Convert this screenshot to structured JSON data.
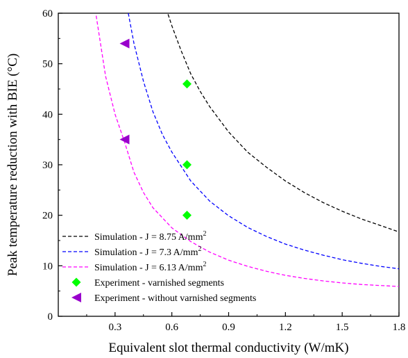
{
  "chart_data": {
    "type": "scatter",
    "xlabel": "Equivalent slot thermal conductivity (W/mK)",
    "ylabel": "Peak temperature reduction with BIE (°C)",
    "xlim": [
      0.0,
      1.8
    ],
    "ylim": [
      0,
      60
    ],
    "x_ticks": [
      "0.3",
      "0.6",
      "0.9",
      "1.2",
      "1.5",
      "1.8"
    ],
    "x_tick_values": [
      0.3,
      0.6,
      0.9,
      1.2,
      1.5,
      1.8
    ],
    "y_ticks": [
      "0",
      "10",
      "20",
      "30",
      "40",
      "50",
      "60"
    ],
    "y_tick_values": [
      0,
      10,
      20,
      30,
      40,
      50,
      60
    ],
    "grid": false,
    "legend_position": "bottom-left",
    "series": [
      {
        "name": "Simulation - J = 8.75 A/mm",
        "name_sup": "2",
        "kind": "dashed-line",
        "color": "#000000",
        "x": [
          0.58,
          0.6,
          0.65,
          0.7,
          0.75,
          0.8,
          0.9,
          1.0,
          1.1,
          1.2,
          1.3,
          1.4,
          1.5,
          1.6,
          1.7,
          1.8
        ],
        "y": [
          59.8,
          57.5,
          52.5,
          48.0,
          44.5,
          41.5,
          36.5,
          32.5,
          29.5,
          26.8,
          24.5,
          22.5,
          20.8,
          19.3,
          18.0,
          16.7
        ]
      },
      {
        "name": "Simulation - J = 7.3 A/mm",
        "name_sup": "2",
        "kind": "dashed-line",
        "color": "#0000ff",
        "x": [
          0.37,
          0.4,
          0.45,
          0.5,
          0.55,
          0.6,
          0.7,
          0.8,
          0.9,
          1.0,
          1.1,
          1.2,
          1.3,
          1.4,
          1.5,
          1.6,
          1.7,
          1.8
        ],
        "y": [
          60.0,
          54.0,
          46.5,
          40.5,
          36.0,
          32.5,
          26.8,
          22.8,
          19.9,
          17.6,
          15.8,
          14.3,
          13.1,
          12.1,
          11.2,
          10.5,
          9.9,
          9.4
        ]
      },
      {
        "name": "Simulation - J = 6.13 A/mm",
        "name_sup": "2",
        "kind": "dashed-line",
        "color": "#ff00ff",
        "x": [
          0.2,
          0.25,
          0.3,
          0.35,
          0.4,
          0.45,
          0.5,
          0.6,
          0.7,
          0.8,
          0.9,
          1.0,
          1.1,
          1.2,
          1.3,
          1.4,
          1.5,
          1.6,
          1.7,
          1.8
        ],
        "y": [
          59.5,
          47.5,
          40.0,
          34.5,
          28.5,
          24.5,
          21.5,
          17.5,
          14.8,
          12.7,
          11.1,
          9.9,
          8.9,
          8.1,
          7.5,
          7.0,
          6.6,
          6.3,
          6.1,
          5.9
        ]
      },
      {
        "name": "Experiment - varnished segments",
        "kind": "diamond-marker",
        "color": "#00ff00",
        "x": [
          0.68,
          0.68,
          0.68
        ],
        "y": [
          46,
          30,
          20
        ]
      },
      {
        "name": "Experiment - without varnished segments",
        "kind": "left-triangle-marker",
        "color": "#9900cc",
        "x": [
          0.35,
          0.35
        ],
        "y": [
          54,
          35
        ]
      }
    ]
  }
}
